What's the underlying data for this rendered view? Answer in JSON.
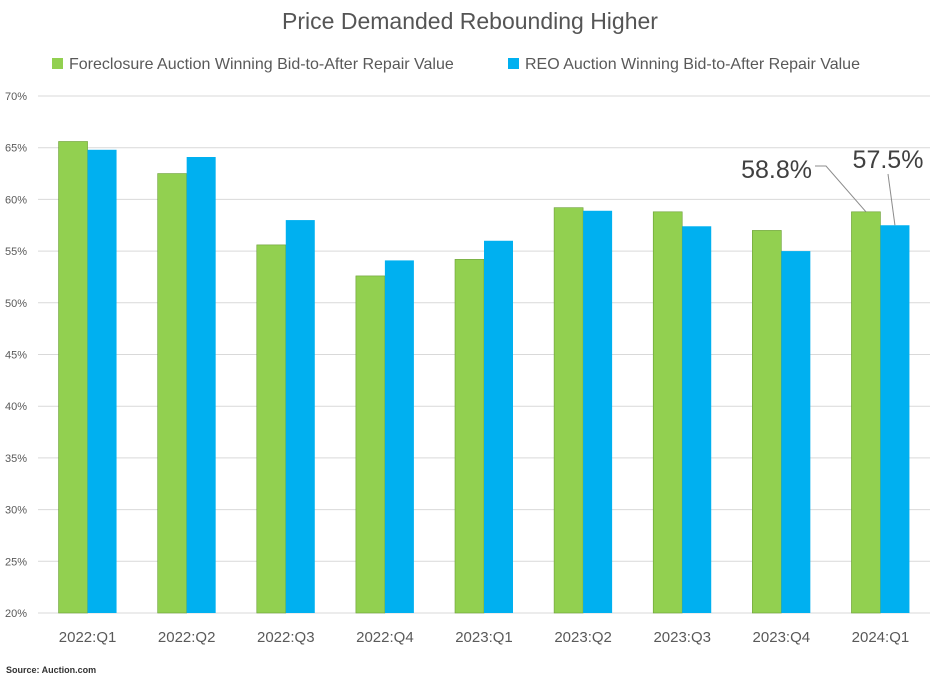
{
  "chart_data": {
    "type": "bar",
    "title": "Price Demanded Rebounding Higher",
    "categories": [
      "2022:Q1",
      "2022:Q2",
      "2022:Q3",
      "2022:Q4",
      "2023:Q1",
      "2023:Q2",
      "2023:Q3",
      "2023:Q4",
      "2024:Q1"
    ],
    "series": [
      {
        "name": "Foreclosure Auction Winning Bid-to-After Repair Value",
        "color": "#92D050",
        "values": [
          65.6,
          62.5,
          55.6,
          52.6,
          54.2,
          59.2,
          58.8,
          57.0,
          58.8
        ]
      },
      {
        "name": "REO Auction Winning Bid-to-After Repair Value",
        "color": "#00B0F0",
        "values": [
          64.8,
          64.1,
          58.0,
          54.1,
          56.0,
          58.9,
          57.4,
          55.0,
          57.5
        ]
      }
    ],
    "ylim": [
      20,
      70
    ],
    "yticks": [
      20,
      25,
      30,
      35,
      40,
      45,
      50,
      55,
      60,
      65,
      70
    ],
    "ytick_labels": [
      "20%",
      "25%",
      "30%",
      "35%",
      "40%",
      "45%",
      "50%",
      "55%",
      "60%",
      "65%",
      "70%"
    ],
    "xlabel": "",
    "ylabel": "",
    "grid": true,
    "legend_position": "top",
    "annotations": [
      {
        "text": "58.8%",
        "series": 0,
        "category": "2024:Q1"
      },
      {
        "text": "57.5%",
        "series": 1,
        "category": "2024:Q1"
      }
    ]
  },
  "source": "Source: Auction.com"
}
